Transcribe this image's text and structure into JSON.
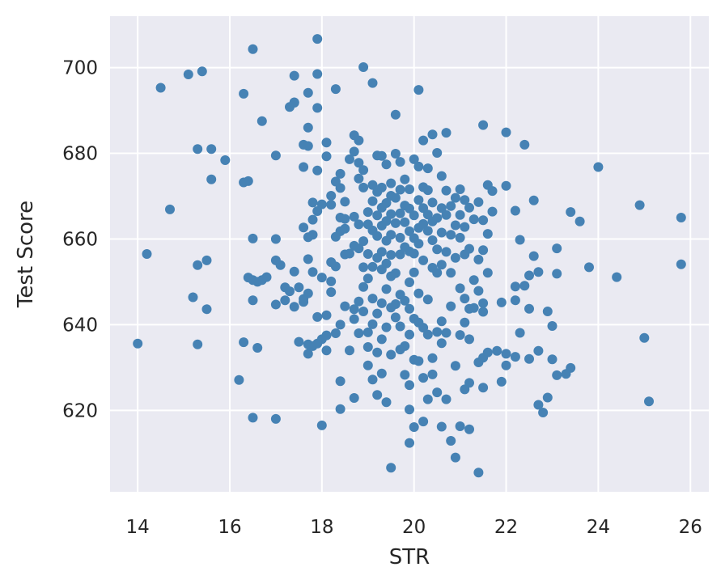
{
  "chart_data": {
    "type": "scatter",
    "title": "",
    "xlabel": "STR",
    "ylabel": "Test Score",
    "xlim": [
      13.4,
      26.4
    ],
    "ylim": [
      601,
      712
    ],
    "xticks": [
      14,
      16,
      18,
      20,
      22,
      24,
      26
    ],
    "yticks": [
      620,
      640,
      660,
      680,
      700
    ],
    "grid": true,
    "legend": "none",
    "colors": {
      "background": "#eaeaf2",
      "grid": "#ffffff",
      "point": "#4682b4",
      "text": "#262626"
    },
    "points": [
      [
        14.0,
        635.6
      ],
      [
        14.2,
        656.5
      ],
      [
        14.5,
        695.3
      ],
      [
        14.7,
        666.9
      ],
      [
        15.1,
        698.4
      ],
      [
        15.2,
        646.4
      ],
      [
        15.3,
        653.9
      ],
      [
        15.3,
        635.4
      ],
      [
        15.3,
        681.0
      ],
      [
        15.4,
        699.1
      ],
      [
        15.5,
        643.6
      ],
      [
        15.5,
        655.0
      ],
      [
        15.6,
        673.9
      ],
      [
        15.6,
        681.0
      ],
      [
        15.9,
        678.4
      ],
      [
        16.2,
        627.1
      ],
      [
        16.3,
        693.9
      ],
      [
        16.3,
        673.2
      ],
      [
        16.3,
        635.9
      ],
      [
        16.4,
        673.5
      ],
      [
        16.4,
        651.0
      ],
      [
        16.5,
        650.4
      ],
      [
        16.5,
        645.7
      ],
      [
        16.5,
        660.1
      ],
      [
        16.5,
        704.3
      ],
      [
        16.5,
        618.3
      ],
      [
        16.6,
        650.0
      ],
      [
        16.6,
        634.6
      ],
      [
        16.7,
        687.5
      ],
      [
        16.7,
        650.4
      ],
      [
        16.8,
        651.1
      ],
      [
        17.0,
        679.5
      ],
      [
        17.0,
        660.0
      ],
      [
        17.0,
        655.0
      ],
      [
        17.0,
        644.7
      ],
      [
        17.0,
        618.0
      ],
      [
        17.1,
        653.9
      ],
      [
        17.2,
        648.7
      ],
      [
        17.2,
        645.7
      ],
      [
        17.3,
        690.8
      ],
      [
        17.3,
        647.8
      ],
      [
        17.4,
        691.9
      ],
      [
        17.4,
        698.1
      ],
      [
        17.4,
        691.8
      ],
      [
        17.4,
        652.4
      ],
      [
        17.4,
        644.2
      ],
      [
        17.5,
        648.7
      ],
      [
        17.5,
        636.0
      ],
      [
        17.6,
        682.0
      ],
      [
        17.6,
        676.8
      ],
      [
        17.6,
        662.7
      ],
      [
        17.6,
        645.3
      ],
      [
        17.6,
        646.0
      ],
      [
        17.7,
        694.1
      ],
      [
        17.7,
        686.0
      ],
      [
        17.7,
        681.7
      ],
      [
        17.7,
        660.4
      ],
      [
        17.7,
        655.3
      ],
      [
        17.7,
        647.3
      ],
      [
        17.7,
        635.4
      ],
      [
        17.7,
        633.2
      ],
      [
        17.8,
        668.5
      ],
      [
        17.8,
        664.5
      ],
      [
        17.8,
        661.0
      ],
      [
        17.8,
        652.3
      ],
      [
        17.8,
        635.0
      ],
      [
        17.9,
        706.7
      ],
      [
        17.9,
        698.5
      ],
      [
        17.9,
        690.6
      ],
      [
        17.9,
        676.0
      ],
      [
        17.9,
        666.5
      ],
      [
        17.9,
        641.8
      ],
      [
        17.9,
        635.6
      ],
      [
        18.0,
        668.1
      ],
      [
        18.0,
        651.0
      ],
      [
        18.0,
        636.6
      ],
      [
        18.0,
        616.5
      ],
      [
        18.1,
        682.5
      ],
      [
        18.1,
        679.3
      ],
      [
        18.1,
        642.2
      ],
      [
        18.1,
        634.0
      ],
      [
        18.1,
        637.5
      ],
      [
        18.2,
        670.1
      ],
      [
        18.2,
        668.0
      ],
      [
        18.2,
        654.6
      ],
      [
        18.2,
        650.1
      ],
      [
        18.2,
        647.6
      ],
      [
        18.3,
        695.0
      ],
      [
        18.3,
        673.4
      ],
      [
        18.3,
        660.5
      ],
      [
        18.3,
        653.6
      ],
      [
        18.3,
        638.0
      ],
      [
        18.4,
        675.2
      ],
      [
        18.4,
        671.9
      ],
      [
        18.4,
        665.0
      ],
      [
        18.4,
        661.8
      ],
      [
        18.4,
        640.0
      ],
      [
        18.4,
        626.8
      ],
      [
        18.4,
        620.3
      ],
      [
        18.5,
        668.7
      ],
      [
        18.5,
        664.7
      ],
      [
        18.5,
        662.4
      ],
      [
        18.5,
        656.4
      ],
      [
        18.5,
        644.3
      ],
      [
        18.6,
        678.6
      ],
      [
        18.6,
        656.6
      ],
      [
        18.6,
        634.0
      ],
      [
        18.7,
        684.2
      ],
      [
        18.7,
        680.4
      ],
      [
        18.7,
        665.2
      ],
      [
        18.7,
        658.4
      ],
      [
        18.7,
        643.6
      ],
      [
        18.7,
        641.3
      ],
      [
        18.7,
        622.9
      ],
      [
        18.8,
        683.0
      ],
      [
        18.8,
        677.8
      ],
      [
        18.8,
        674.1
      ],
      [
        18.8,
        663.4
      ],
      [
        18.8,
        657.8
      ],
      [
        18.8,
        645.4
      ],
      [
        18.8,
        638.0
      ],
      [
        18.9,
        700.1
      ],
      [
        18.9,
        676.1
      ],
      [
        18.9,
        672.0
      ],
      [
        18.9,
        659.5
      ],
      [
        18.9,
        653.4
      ],
      [
        18.9,
        648.8
      ],
      [
        18.9,
        643.1
      ],
      [
        19.0,
        666.3
      ],
      [
        19.0,
        663.4
      ],
      [
        19.0,
        656.5
      ],
      [
        19.0,
        650.8
      ],
      [
        19.0,
        638.2
      ],
      [
        19.0,
        634.8
      ],
      [
        19.0,
        630.5
      ],
      [
        19.1,
        696.4
      ],
      [
        19.1,
        672.6
      ],
      [
        19.1,
        668.8
      ],
      [
        19.1,
        662.0
      ],
      [
        19.1,
        653.5
      ],
      [
        19.1,
        646.1
      ],
      [
        19.1,
        640.1
      ],
      [
        19.1,
        627.2
      ],
      [
        19.2,
        679.5
      ],
      [
        19.2,
        671.0
      ],
      [
        19.2,
        665.5
      ],
      [
        19.2,
        660.7
      ],
      [
        19.2,
        655.6
      ],
      [
        19.2,
        642.6
      ],
      [
        19.2,
        633.5
      ],
      [
        19.2,
        623.6
      ],
      [
        19.3,
        679.4
      ],
      [
        19.3,
        672.0
      ],
      [
        19.3,
        667.3
      ],
      [
        19.3,
        663.1
      ],
      [
        19.3,
        657.0
      ],
      [
        19.3,
        652.9
      ],
      [
        19.3,
        645.0
      ],
      [
        19.3,
        636.6
      ],
      [
        19.3,
        628.6
      ],
      [
        19.4,
        677.4
      ],
      [
        19.4,
        668.4
      ],
      [
        19.4,
        664.2
      ],
      [
        19.4,
        659.6
      ],
      [
        19.4,
        654.3
      ],
      [
        19.4,
        648.3
      ],
      [
        19.4,
        639.4
      ],
      [
        19.4,
        621.9
      ],
      [
        19.5,
        673.0
      ],
      [
        19.5,
        670.1
      ],
      [
        19.5,
        665.8
      ],
      [
        19.5,
        661.0
      ],
      [
        19.5,
        656.3
      ],
      [
        19.5,
        651.3
      ],
      [
        19.5,
        644.0
      ],
      [
        19.5,
        633.0
      ],
      [
        19.5,
        606.6
      ],
      [
        19.6,
        689.0
      ],
      [
        19.6,
        679.9
      ],
      [
        19.6,
        669.6
      ],
      [
        19.6,
        663.7
      ],
      [
        19.6,
        652.0
      ],
      [
        19.6,
        641.7
      ],
      [
        19.6,
        644.8
      ],
      [
        19.7,
        678.0
      ],
      [
        19.7,
        671.5
      ],
      [
        19.7,
        666.0
      ],
      [
        19.7,
        660.3
      ],
      [
        19.7,
        656.4
      ],
      [
        19.7,
        647.0
      ],
      [
        19.7,
        639.6
      ],
      [
        19.7,
        634.2
      ],
      [
        19.8,
        673.9
      ],
      [
        19.8,
        667.8
      ],
      [
        19.8,
        663.9
      ],
      [
        19.8,
        658.1
      ],
      [
        19.8,
        645.6
      ],
      [
        19.8,
        635.0
      ],
      [
        19.8,
        628.3
      ],
      [
        19.9,
        671.6
      ],
      [
        19.9,
        667.1
      ],
      [
        19.9,
        661.8
      ],
      [
        19.9,
        657.1
      ],
      [
        19.9,
        649.9
      ],
      [
        19.9,
        643.7
      ],
      [
        19.9,
        637.7
      ],
      [
        19.9,
        625.9
      ],
      [
        19.9,
        620.2
      ],
      [
        19.9,
        612.4
      ],
      [
        20.0,
        678.6
      ],
      [
        20.0,
        665.5
      ],
      [
        20.0,
        660.2
      ],
      [
        20.0,
        656.6
      ],
      [
        20.0,
        652.2
      ],
      [
        20.0,
        641.4
      ],
      [
        20.0,
        631.8
      ],
      [
        20.0,
        616.1
      ],
      [
        20.1,
        694.8
      ],
      [
        20.1,
        676.9
      ],
      [
        20.1,
        669.1
      ],
      [
        20.1,
        662.6
      ],
      [
        20.1,
        658.9
      ],
      [
        20.1,
        647.3
      ],
      [
        20.1,
        640.5
      ],
      [
        20.1,
        631.5
      ],
      [
        20.2,
        683.0
      ],
      [
        20.2,
        672.1
      ],
      [
        20.2,
        667.2
      ],
      [
        20.2,
        663.5
      ],
      [
        20.2,
        655.0
      ],
      [
        20.2,
        639.3
      ],
      [
        20.2,
        627.6
      ],
      [
        20.2,
        617.4
      ],
      [
        20.3,
        676.5
      ],
      [
        20.3,
        671.4
      ],
      [
        20.3,
        665.7
      ],
      [
        20.3,
        661.9
      ],
      [
        20.3,
        645.9
      ],
      [
        20.3,
        637.7
      ],
      [
        20.3,
        622.6
      ],
      [
        20.4,
        684.4
      ],
      [
        20.4,
        668.5
      ],
      [
        20.4,
        664.1
      ],
      [
        20.4,
        659.7
      ],
      [
        20.4,
        653.3
      ],
      [
        20.4,
        632.2
      ],
      [
        20.4,
        628.4
      ],
      [
        20.5,
        680.1
      ],
      [
        20.5,
        664.9
      ],
      [
        20.5,
        657.6
      ],
      [
        20.5,
        652.1
      ],
      [
        20.5,
        638.3
      ],
      [
        20.5,
        624.2
      ],
      [
        20.6,
        674.7
      ],
      [
        20.6,
        667.2
      ],
      [
        20.6,
        661.5
      ],
      [
        20.6,
        654.0
      ],
      [
        20.6,
        640.8
      ],
      [
        20.6,
        635.7
      ],
      [
        20.6,
        616.2
      ],
      [
        20.7,
        684.8
      ],
      [
        20.7,
        671.3
      ],
      [
        20.7,
        665.6
      ],
      [
        20.7,
        657.0
      ],
      [
        20.7,
        638.1
      ],
      [
        20.7,
        622.6
      ],
      [
        20.8,
        667.7
      ],
      [
        20.8,
        661.0
      ],
      [
        20.8,
        652.1
      ],
      [
        20.8,
        644.3
      ],
      [
        20.8,
        612.9
      ],
      [
        20.9,
        669.6
      ],
      [
        20.9,
        663.2
      ],
      [
        20.9,
        655.6
      ],
      [
        20.9,
        630.4
      ],
      [
        20.9,
        609.0
      ],
      [
        21.0,
        671.6
      ],
      [
        21.0,
        665.6
      ],
      [
        21.0,
        660.3
      ],
      [
        21.0,
        648.5
      ],
      [
        21.0,
        637.6
      ],
      [
        21.0,
        616.3
      ],
      [
        21.1,
        669.1
      ],
      [
        21.1,
        662.8
      ],
      [
        21.1,
        656.4
      ],
      [
        21.1,
        646.1
      ],
      [
        21.1,
        640.5
      ],
      [
        21.1,
        624.9
      ],
      [
        21.2,
        667.3
      ],
      [
        21.2,
        657.7
      ],
      [
        21.2,
        643.7
      ],
      [
        21.2,
        636.6
      ],
      [
        21.2,
        626.4
      ],
      [
        21.2,
        615.6
      ],
      [
        21.3,
        664.6
      ],
      [
        21.3,
        650.4
      ],
      [
        21.3,
        643.9
      ],
      [
        21.4,
        668.6
      ],
      [
        21.4,
        655.2
      ],
      [
        21.4,
        647.9
      ],
      [
        21.4,
        631.2
      ],
      [
        21.4,
        605.5
      ],
      [
        21.5,
        686.6
      ],
      [
        21.5,
        664.4
      ],
      [
        21.5,
        657.4
      ],
      [
        21.5,
        645.0
      ],
      [
        21.5,
        643.0
      ],
      [
        21.5,
        632.3
      ],
      [
        21.5,
        625.3
      ],
      [
        21.6,
        672.6
      ],
      [
        21.6,
        661.2
      ],
      [
        21.6,
        652.1
      ],
      [
        21.6,
        633.5
      ],
      [
        21.7,
        671.2
      ],
      [
        21.7,
        666.4
      ],
      [
        21.8,
        633.9
      ],
      [
        21.9,
        645.2
      ],
      [
        21.9,
        626.7
      ],
      [
        22.0,
        684.9
      ],
      [
        22.0,
        672.4
      ],
      [
        22.0,
        633.2
      ],
      [
        22.0,
        630.5
      ],
      [
        22.2,
        666.6
      ],
      [
        22.2,
        648.9
      ],
      [
        22.2,
        645.7
      ],
      [
        22.2,
        632.5
      ],
      [
        22.3,
        659.8
      ],
      [
        22.3,
        638.1
      ],
      [
        22.4,
        682.0
      ],
      [
        22.4,
        649.1
      ],
      [
        22.5,
        651.5
      ],
      [
        22.5,
        643.7
      ],
      [
        22.5,
        632.0
      ],
      [
        22.6,
        669.0
      ],
      [
        22.6,
        656.0
      ],
      [
        22.7,
        652.3
      ],
      [
        22.7,
        633.9
      ],
      [
        22.7,
        621.3
      ],
      [
        22.8,
        619.5
      ],
      [
        22.9,
        643.1
      ],
      [
        22.9,
        623.0
      ],
      [
        23.0,
        639.7
      ],
      [
        23.0,
        631.9
      ],
      [
        23.1,
        657.8
      ],
      [
        23.1,
        651.9
      ],
      [
        23.1,
        628.2
      ],
      [
        23.3,
        628.5
      ],
      [
        23.4,
        629.9
      ],
      [
        23.4,
        666.3
      ],
      [
        23.6,
        664.1
      ],
      [
        23.8,
        653.4
      ],
      [
        24.0,
        676.8
      ],
      [
        24.4,
        651.1
      ],
      [
        24.9,
        667.9
      ],
      [
        25.0,
        636.9
      ],
      [
        25.1,
        622.1
      ],
      [
        25.8,
        665.0
      ],
      [
        25.8,
        654.1
      ]
    ]
  }
}
